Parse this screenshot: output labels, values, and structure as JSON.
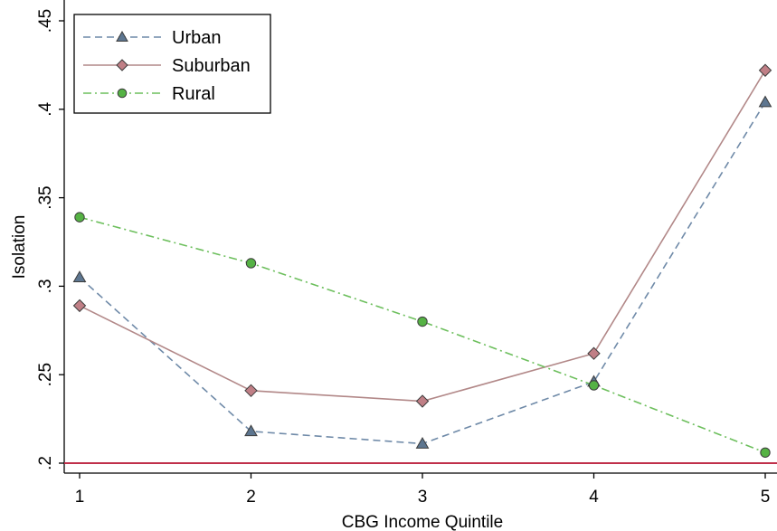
{
  "chart_data": {
    "type": "line",
    "title": "",
    "xlabel": "CBG Income Quintile",
    "ylabel": "Isolation",
    "x": [
      1,
      2,
      3,
      4,
      5
    ],
    "xticks": [
      "1",
      "2",
      "3",
      "4",
      "5"
    ],
    "xlim": [
      1,
      5
    ],
    "ylim": [
      0.2,
      0.45
    ],
    "yticks": [
      {
        "value": 0.2,
        "label": ".2"
      },
      {
        "value": 0.25,
        "label": ".25"
      },
      {
        "value": 0.3,
        "label": ".3"
      },
      {
        "value": 0.35,
        "label": ".35"
      },
      {
        "value": 0.4,
        "label": ".4"
      },
      {
        "value": 0.45,
        "label": ".45"
      }
    ],
    "legend_position": "top-left",
    "grid": false,
    "reference_line": {
      "y": 0.2,
      "color": "#c0304a"
    },
    "series": [
      {
        "name": "Urban",
        "values": [
          0.305,
          0.218,
          0.211,
          0.246,
          0.404
        ],
        "color": "#6f8aa8",
        "marker": "triangle",
        "marker_fill": "#5d7690",
        "dash": "dash"
      },
      {
        "name": "Suburban",
        "values": [
          0.289,
          0.241,
          0.235,
          0.262,
          0.422
        ],
        "color": "#b28888",
        "marker": "diamond",
        "marker_fill": "#c07f86",
        "dash": "solid"
      },
      {
        "name": "Rural",
        "values": [
          0.339,
          0.313,
          0.28,
          0.244,
          0.206
        ],
        "color": "#6dbf5d",
        "marker": "circle",
        "marker_fill": "#55b244",
        "dash": "dashdot"
      }
    ]
  }
}
